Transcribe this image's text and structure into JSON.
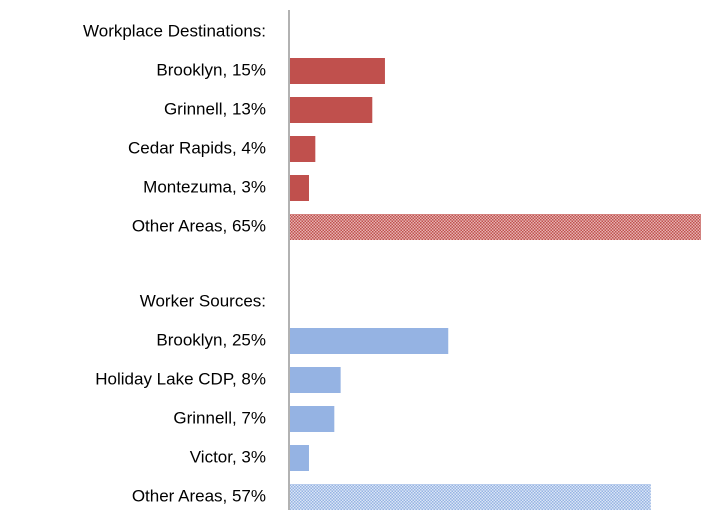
{
  "chart_data": {
    "type": "bar",
    "groups": [
      {
        "name": "Workplace Destinations:",
        "color": "#c0504d",
        "categories": [
          "Brooklyn, 15%",
          "Grinnell, 13%",
          "Cedar Rapids, 4%",
          "Montezuma, 3%",
          "Other Areas, 65%"
        ],
        "values": [
          15,
          13,
          4,
          3,
          65
        ]
      },
      {
        "name": "Worker Sources:",
        "color": "#95b3e3",
        "categories": [
          "Brooklyn, 25%",
          "Holiday Lake CDP, 8%",
          "Grinnell, 7%",
          "Victor, 3%",
          "Other Areas, 57%"
        ],
        "values": [
          25,
          8,
          7,
          3,
          57
        ]
      }
    ]
  }
}
